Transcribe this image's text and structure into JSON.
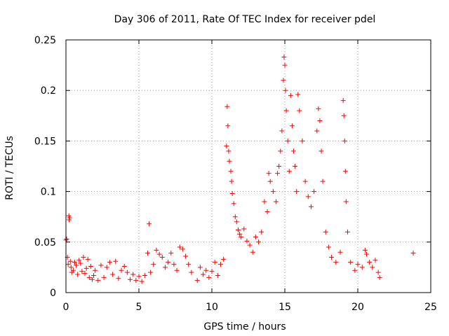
{
  "chart_data": {
    "type": "scatter",
    "title": "Day 306 of 2011, Rate Of TEC Index for receiver pdel",
    "xlabel": "GPS time / hours",
    "ylabel": "ROTI / TECUs",
    "xlim": [
      0,
      25
    ],
    "ylim": [
      0,
      0.25
    ],
    "xticks": [
      0,
      5,
      10,
      15,
      20,
      25
    ],
    "xtick_labels": [
      "0",
      "5",
      "10",
      "15",
      "20",
      "25"
    ],
    "yticks": [
      0,
      0.05,
      0.1,
      0.15,
      0.2,
      0.25
    ],
    "ytick_labels": [
      "0",
      "0.05",
      "0.1",
      "0.15",
      "0.2",
      "0.25"
    ],
    "grid": true,
    "marker": "+",
    "color": "#ff0000",
    "series": [
      {
        "points": [
          [
            0.0,
            0.052
          ],
          [
            0.05,
            0.053
          ],
          [
            0.1,
            0.035
          ],
          [
            0.15,
            0.028
          ],
          [
            0.2,
            0.076
          ],
          [
            0.22,
            0.072
          ],
          [
            0.25,
            0.074
          ],
          [
            0.3,
            0.031
          ],
          [
            0.35,
            0.025
          ],
          [
            0.4,
            0.02
          ],
          [
            0.5,
            0.022
          ],
          [
            0.6,
            0.03
          ],
          [
            0.7,
            0.027
          ],
          [
            0.8,
            0.018
          ],
          [
            0.9,
            0.032
          ],
          [
            1.0,
            0.029
          ],
          [
            1.1,
            0.021
          ],
          [
            1.2,
            0.035
          ],
          [
            1.3,
            0.019
          ],
          [
            1.4,
            0.024
          ],
          [
            1.5,
            0.033
          ],
          [
            1.6,
            0.015
          ],
          [
            1.7,
            0.026
          ],
          [
            1.8,
            0.013
          ],
          [
            1.9,
            0.017
          ],
          [
            2.0,
            0.022
          ],
          [
            2.2,
            0.012
          ],
          [
            2.4,
            0.027
          ],
          [
            2.6,
            0.015
          ],
          [
            2.8,
            0.025
          ],
          [
            3.0,
            0.03
          ],
          [
            3.2,
            0.018
          ],
          [
            3.4,
            0.031
          ],
          [
            3.6,
            0.014
          ],
          [
            3.8,
            0.022
          ],
          [
            4.0,
            0.026
          ],
          [
            4.2,
            0.02
          ],
          [
            4.4,
            0.013
          ],
          [
            4.6,
            0.018
          ],
          [
            4.8,
            0.012
          ],
          [
            5.0,
            0.016
          ],
          [
            5.2,
            0.011
          ],
          [
            5.4,
            0.017
          ],
          [
            5.6,
            0.039
          ],
          [
            5.7,
            0.068
          ],
          [
            5.8,
            0.02
          ],
          [
            6.0,
            0.028
          ],
          [
            6.2,
            0.042
          ],
          [
            6.4,
            0.038
          ],
          [
            6.6,
            0.035
          ],
          [
            6.8,
            0.025
          ],
          [
            7.0,
            0.03
          ],
          [
            7.2,
            0.039
          ],
          [
            7.4,
            0.028
          ],
          [
            7.6,
            0.022
          ],
          [
            7.8,
            0.045
          ],
          [
            8.0,
            0.043
          ],
          [
            8.2,
            0.036
          ],
          [
            8.4,
            0.028
          ],
          [
            8.6,
            0.02
          ],
          [
            9.0,
            0.012
          ],
          [
            9.2,
            0.025
          ],
          [
            9.4,
            0.018
          ],
          [
            9.6,
            0.022
          ],
          [
            9.8,
            0.015
          ],
          [
            10.0,
            0.021
          ],
          [
            10.2,
            0.03
          ],
          [
            10.4,
            0.017
          ],
          [
            10.6,
            0.028
          ],
          [
            10.8,
            0.033
          ],
          [
            11.0,
            0.145
          ],
          [
            11.05,
            0.184
          ],
          [
            11.1,
            0.165
          ],
          [
            11.15,
            0.14
          ],
          [
            11.2,
            0.13
          ],
          [
            11.3,
            0.12
          ],
          [
            11.35,
            0.11
          ],
          [
            11.4,
            0.098
          ],
          [
            11.5,
            0.088
          ],
          [
            11.6,
            0.075
          ],
          [
            11.7,
            0.07
          ],
          [
            11.8,
            0.062
          ],
          [
            11.9,
            0.058
          ],
          [
            12.0,
            0.055
          ],
          [
            12.2,
            0.063
          ],
          [
            12.4,
            0.051
          ],
          [
            12.6,
            0.047
          ],
          [
            12.8,
            0.04
          ],
          [
            13.0,
            0.055
          ],
          [
            13.2,
            0.05
          ],
          [
            13.4,
            0.06
          ],
          [
            13.6,
            0.09
          ],
          [
            13.8,
            0.08
          ],
          [
            13.9,
            0.118
          ],
          [
            14.0,
            0.11
          ],
          [
            14.2,
            0.1
          ],
          [
            14.4,
            0.09
          ],
          [
            14.5,
            0.118
          ],
          [
            14.6,
            0.125
          ],
          [
            14.7,
            0.14
          ],
          [
            14.8,
            0.16
          ],
          [
            14.9,
            0.21
          ],
          [
            14.95,
            0.233
          ],
          [
            15.0,
            0.225
          ],
          [
            15.05,
            0.2
          ],
          [
            15.1,
            0.18
          ],
          [
            15.2,
            0.15
          ],
          [
            15.3,
            0.12
          ],
          [
            15.4,
            0.195
          ],
          [
            15.5,
            0.165
          ],
          [
            15.6,
            0.14
          ],
          [
            15.7,
            0.125
          ],
          [
            15.8,
            0.1
          ],
          [
            15.9,
            0.196
          ],
          [
            16.0,
            0.18
          ],
          [
            16.2,
            0.15
          ],
          [
            16.4,
            0.11
          ],
          [
            16.6,
            0.095
          ],
          [
            16.8,
            0.085
          ],
          [
            17.0,
            0.1
          ],
          [
            17.2,
            0.16
          ],
          [
            17.3,
            0.182
          ],
          [
            17.4,
            0.17
          ],
          [
            17.5,
            0.14
          ],
          [
            17.6,
            0.11
          ],
          [
            17.8,
            0.06
          ],
          [
            18.0,
            0.045
          ],
          [
            18.2,
            0.035
          ],
          [
            18.5,
            0.03
          ],
          [
            18.8,
            0.04
          ],
          [
            19.0,
            0.19
          ],
          [
            19.05,
            0.175
          ],
          [
            19.1,
            0.15
          ],
          [
            19.15,
            0.12
          ],
          [
            19.2,
            0.09
          ],
          [
            19.3,
            0.06
          ],
          [
            19.5,
            0.03
          ],
          [
            19.8,
            0.022
          ],
          [
            20.0,
            0.028
          ],
          [
            20.3,
            0.025
          ],
          [
            20.5,
            0.042
          ],
          [
            20.6,
            0.038
          ],
          [
            20.8,
            0.03
          ],
          [
            21.0,
            0.025
          ],
          [
            21.2,
            0.032
          ],
          [
            21.4,
            0.02
          ],
          [
            21.5,
            0.015
          ],
          [
            23.8,
            0.039
          ]
        ]
      }
    ]
  }
}
